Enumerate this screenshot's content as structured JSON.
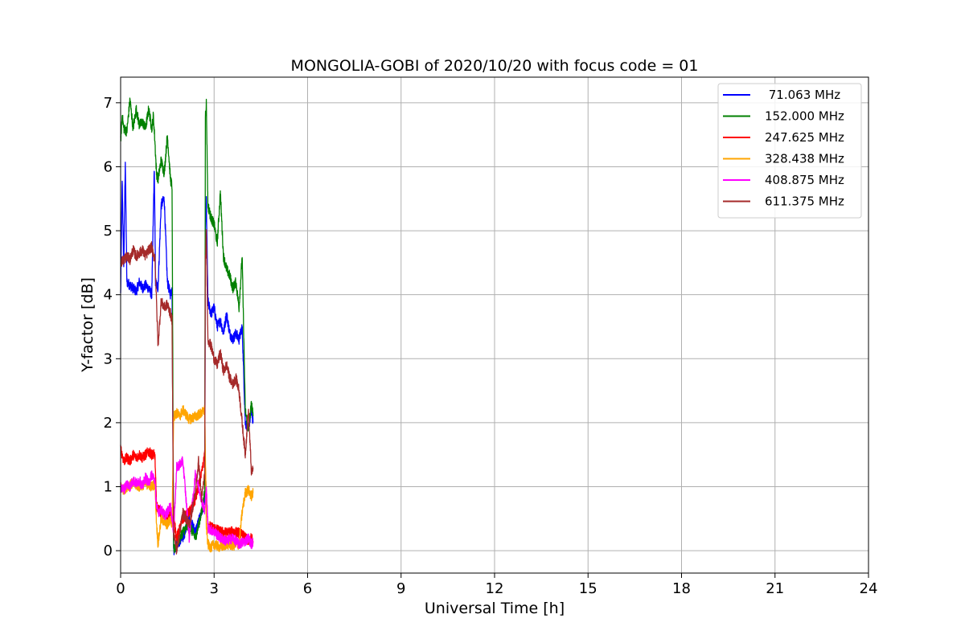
{
  "chart_data": {
    "type": "line",
    "title": "MONGOLIA-GOBI of 2020/10/20 with focus code = 01",
    "xlabel": "Universal Time [h]",
    "ylabel": "Y-factor [dB]",
    "xlim": [
      0,
      24
    ],
    "ylim": [
      -0.35,
      7.4
    ],
    "xticks": [
      0,
      3,
      6,
      9,
      12,
      15,
      18,
      21,
      24
    ],
    "yticks": [
      0,
      1,
      2,
      3,
      4,
      5,
      6,
      7
    ],
    "grid": true,
    "legend_position": "top-right",
    "series": [
      {
        "name": " 71.063 MHz",
        "color": "#0000ff",
        "x": [
          0,
          0.05,
          0.1,
          0.15,
          0.2,
          0.3,
          0.4,
          0.5,
          0.6,
          0.7,
          0.8,
          0.9,
          1.0,
          1.08,
          1.12,
          1.2,
          1.3,
          1.4,
          1.5,
          1.6,
          1.65,
          1.7,
          1.8,
          2.0,
          2.2,
          2.4,
          2.6,
          2.7,
          2.72,
          2.75,
          2.8,
          2.9,
          3.0,
          3.1,
          3.2,
          3.3,
          3.4,
          3.5,
          3.6,
          3.7,
          3.8,
          3.9,
          4.0,
          4.1,
          4.2,
          4.25
        ],
        "y": [
          4.0,
          5.8,
          4.4,
          6.1,
          4.2,
          4.15,
          4.1,
          4.05,
          4.2,
          4.1,
          4.15,
          4.1,
          4.0,
          6.0,
          4.2,
          4.1,
          5.4,
          5.5,
          4.2,
          4.0,
          4.1,
          0.0,
          0.1,
          0.2,
          0.5,
          0.3,
          0.6,
          0.8,
          5.0,
          5.5,
          3.9,
          3.7,
          3.8,
          3.5,
          3.6,
          3.4,
          3.7,
          3.4,
          3.3,
          3.4,
          3.3,
          3.5,
          2.0,
          1.9,
          2.2,
          2.0
        ]
      },
      {
        "name": "152.000 MHz",
        "color": "#008000",
        "x": [
          0,
          0.05,
          0.1,
          0.2,
          0.3,
          0.4,
          0.5,
          0.6,
          0.7,
          0.8,
          0.9,
          1.0,
          1.05,
          1.1,
          1.15,
          1.2,
          1.3,
          1.4,
          1.5,
          1.6,
          1.65,
          1.7,
          1.8,
          2.0,
          2.2,
          2.4,
          2.6,
          2.7,
          2.72,
          2.75,
          2.8,
          2.9,
          3.0,
          3.1,
          3.2,
          3.3,
          3.4,
          3.5,
          3.6,
          3.7,
          3.8,
          3.9,
          4.0,
          4.1,
          4.2,
          4.25
        ],
        "y": [
          6.4,
          6.8,
          6.6,
          6.55,
          7.05,
          6.6,
          6.9,
          6.65,
          6.7,
          6.6,
          6.9,
          6.6,
          6.8,
          6.4,
          5.9,
          5.8,
          6.1,
          5.9,
          6.5,
          5.8,
          5.7,
          0.0,
          0.1,
          0.3,
          0.4,
          0.2,
          0.6,
          0.9,
          6.8,
          7.0,
          5.4,
          5.2,
          5.1,
          4.8,
          5.6,
          4.6,
          4.4,
          4.3,
          4.1,
          4.2,
          3.8,
          4.6,
          2.2,
          1.9,
          2.3,
          2.1
        ]
      },
      {
        "name": "247.625 MHz",
        "color": "#ff0000",
        "x": [
          0,
          0.1,
          0.2,
          0.3,
          0.4,
          0.5,
          0.6,
          0.7,
          0.8,
          0.9,
          1.0,
          1.1,
          1.15,
          1.2,
          1.3,
          1.4,
          1.5,
          1.6,
          1.7,
          1.8,
          2.0,
          2.2,
          2.4,
          2.6,
          2.7,
          2.75,
          2.8,
          3.0,
          3.2,
          3.4,
          3.6,
          3.8,
          3.9,
          4.0,
          4.1,
          4.2,
          4.25
        ],
        "y": [
          1.6,
          1.4,
          1.45,
          1.4,
          1.5,
          1.45,
          1.5,
          1.45,
          1.5,
          1.55,
          1.5,
          1.5,
          0.7,
          0.65,
          0.6,
          0.55,
          0.5,
          0.55,
          0.5,
          0.2,
          0.5,
          0.6,
          0.8,
          1.2,
          1.5,
          0.9,
          0.4,
          0.35,
          0.3,
          0.28,
          0.3,
          0.28,
          0.25,
          0.2,
          0.15,
          0.2,
          0.15
        ]
      },
      {
        "name": "328.438 MHz",
        "color": "#ffa500",
        "x": [
          0,
          0.1,
          0.2,
          0.4,
          0.6,
          0.8,
          1.0,
          1.1,
          1.15,
          1.2,
          1.3,
          1.4,
          1.5,
          1.6,
          1.65,
          1.7,
          1.8,
          1.9,
          2.0,
          2.2,
          2.4,
          2.6,
          2.7,
          2.75,
          2.8,
          2.9,
          3.0,
          3.2,
          3.4,
          3.6,
          3.8,
          3.9,
          4.0,
          4.1,
          4.2,
          4.25
        ],
        "y": [
          1.0,
          0.95,
          1.0,
          1.05,
          1.0,
          1.05,
          1.0,
          1.05,
          0.45,
          0.1,
          0.5,
          0.45,
          0.4,
          0.5,
          0.4,
          2.1,
          2.15,
          2.1,
          2.2,
          2.05,
          2.1,
          2.15,
          2.2,
          0.4,
          0.1,
          0.05,
          0.1,
          0.05,
          0.1,
          0.08,
          0.1,
          0.6,
          0.9,
          0.95,
          0.85,
          0.9
        ]
      },
      {
        "name": "408.875 MHz",
        "color": "#ff00ff",
        "x": [
          0,
          0.1,
          0.2,
          0.3,
          0.4,
          0.5,
          0.6,
          0.7,
          0.8,
          0.9,
          1.0,
          1.1,
          1.15,
          1.2,
          1.3,
          1.4,
          1.5,
          1.6,
          1.7,
          1.8,
          2.0,
          2.2,
          2.4,
          2.6,
          2.7,
          2.75,
          2.8,
          3.0,
          3.2,
          3.4,
          3.6,
          3.8,
          4.0,
          4.1,
          4.2,
          4.25
        ],
        "y": [
          1.0,
          0.95,
          1.05,
          1.0,
          1.1,
          1.05,
          1.1,
          1.0,
          1.15,
          1.05,
          1.2,
          1.1,
          0.7,
          0.6,
          0.65,
          0.55,
          0.6,
          0.7,
          0.3,
          1.3,
          1.4,
          0.2,
          1.2,
          0.8,
          0.6,
          1.0,
          0.35,
          0.3,
          0.2,
          0.15,
          0.2,
          0.1,
          0.15,
          0.2,
          0.1,
          0.15
        ]
      },
      {
        "name": "611.375 MHz",
        "color": "#a52a2a",
        "x": [
          0,
          0.1,
          0.2,
          0.3,
          0.4,
          0.5,
          0.6,
          0.7,
          0.8,
          0.9,
          1.0,
          1.05,
          1.1,
          1.15,
          1.2,
          1.3,
          1.4,
          1.5,
          1.6,
          1.65,
          1.7,
          1.8,
          2.0,
          2.2,
          2.4,
          2.5,
          2.6,
          2.7,
          2.72,
          2.75,
          2.8,
          2.9,
          3.0,
          3.1,
          3.2,
          3.3,
          3.4,
          3.5,
          3.6,
          3.7,
          3.8,
          3.9,
          4.0,
          4.1,
          4.2,
          4.25
        ],
        "y": [
          4.5,
          4.55,
          4.6,
          4.55,
          4.7,
          4.6,
          4.65,
          4.7,
          4.6,
          4.7,
          4.75,
          4.6,
          4.6,
          3.9,
          3.2,
          3.9,
          3.8,
          3.85,
          3.7,
          3.6,
          0.3,
          0.0,
          0.6,
          0.4,
          0.9,
          1.4,
          0.8,
          1.2,
          4.5,
          5.0,
          3.3,
          3.2,
          3.0,
          2.9,
          3.1,
          2.8,
          2.9,
          2.7,
          2.6,
          2.7,
          2.5,
          2.0,
          1.5,
          2.2,
          1.2,
          1.3
        ]
      }
    ]
  }
}
